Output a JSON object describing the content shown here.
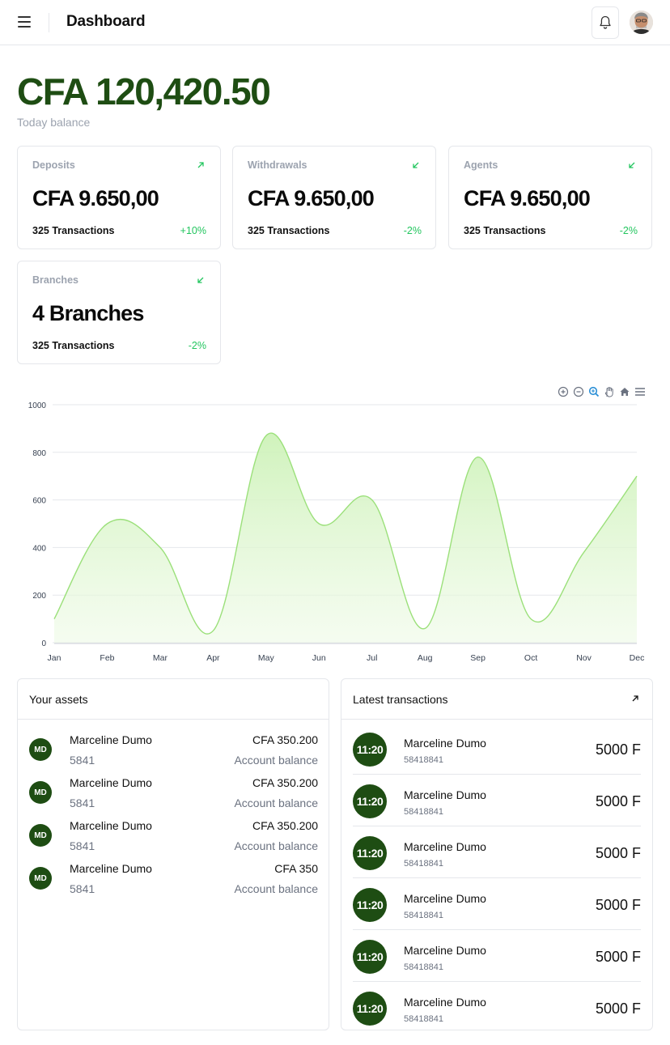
{
  "header": {
    "title": "Dashboard"
  },
  "balance": {
    "amount": "CFA 120,420.50",
    "label": "Today balance"
  },
  "cards": [
    {
      "title": "Deposits",
      "value": "CFA 9.650,00",
      "transactions": "325 Transactions",
      "change": "+10%",
      "trend": "up"
    },
    {
      "title": "Withdrawals",
      "value": "CFA 9.650,00",
      "transactions": "325 Transactions",
      "change": "-2%",
      "trend": "down"
    },
    {
      "title": "Agents",
      "value": "CFA 9.650,00",
      "transactions": "325 Transactions",
      "change": "-2%",
      "trend": "down"
    },
    {
      "title": "Branches",
      "value": "4 Branches",
      "transactions": "325 Transactions",
      "change": "-2%",
      "trend": "down"
    }
  ],
  "chart_data": {
    "type": "area",
    "categories": [
      "Jan",
      "Feb",
      "Mar",
      "Apr",
      "May",
      "Jun",
      "Jul",
      "Aug",
      "Sep",
      "Oct",
      "Nov",
      "Dec"
    ],
    "values": [
      100,
      500,
      400,
      50,
      870,
      500,
      600,
      60,
      780,
      100,
      380,
      700
    ],
    "ylim": [
      0,
      1000
    ],
    "yticks": [
      "0",
      "200",
      "400",
      "600",
      "800",
      "1000"
    ],
    "title": "",
    "xlabel": "",
    "ylabel": "",
    "color": "#9be07a"
  },
  "assets": {
    "title": "Your assets",
    "items": [
      {
        "initials": "MD",
        "name": "Marceline Dumo",
        "code": "5841",
        "amount": "CFA 350.200",
        "label": "Account balance"
      },
      {
        "initials": "MD",
        "name": "Marceline Dumo",
        "code": "5841",
        "amount": "CFA 350.200",
        "label": "Account balance"
      },
      {
        "initials": "MD",
        "name": "Marceline Dumo",
        "code": "5841",
        "amount": "CFA 350.200",
        "label": "Account balance"
      },
      {
        "initials": "MD",
        "name": "Marceline Dumo",
        "code": "5841",
        "amount": "CFA 350",
        "label": "Account balance"
      }
    ]
  },
  "transactions": {
    "title": "Latest transactions",
    "items": [
      {
        "time": "11:20",
        "name": "Marceline Dumo",
        "id": "58418841",
        "amount": "5000 F"
      },
      {
        "time": "11:20",
        "name": "Marceline Dumo",
        "id": "58418841",
        "amount": "5000 F"
      },
      {
        "time": "11:20",
        "name": "Marceline Dumo",
        "id": "58418841",
        "amount": "5000 F"
      },
      {
        "time": "11:20",
        "name": "Marceline Dumo",
        "id": "58418841",
        "amount": "5000 F"
      },
      {
        "time": "11:20",
        "name": "Marceline Dumo",
        "id": "58418841",
        "amount": "5000 F"
      },
      {
        "time": "11:20",
        "name": "Marceline Dumo",
        "id": "58418841",
        "amount": "5000 F"
      }
    ]
  },
  "colors": {
    "brand": "#1e4d13",
    "positive": "#22c55e",
    "chart_fill": "#d8f5c8"
  }
}
